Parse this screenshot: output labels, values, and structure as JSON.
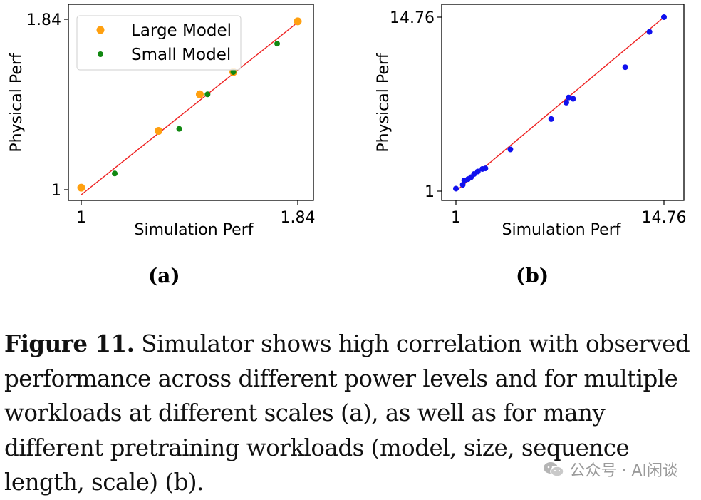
{
  "chart_data": [
    {
      "type": "scatter",
      "panel": "(a)",
      "xlabel": "Simulation Perf",
      "ylabel": "Physical Perf",
      "xlim": [
        1,
        1.84
      ],
      "ylim": [
        1,
        1.84
      ],
      "xticks": [
        "1",
        "1.84"
      ],
      "yticks": [
        "1",
        "1.84"
      ],
      "grid": false,
      "legend": "top-left",
      "fit_line": {
        "color": "#ee2222",
        "x": [
          1.0,
          1.83
        ],
        "y": [
          0.975,
          1.815
        ]
      },
      "series": [
        {
          "name": "Large Model",
          "color": "#ffa010",
          "x": [
            1.0,
            1.3,
            1.46,
            1.59,
            1.84
          ],
          "y": [
            1.01,
            1.29,
            1.47,
            1.58,
            1.83
          ]
        },
        {
          "name": "Small Model",
          "color": "#118811",
          "x": [
            1.13,
            1.38,
            1.49,
            1.59,
            1.76
          ],
          "y": [
            1.08,
            1.3,
            1.47,
            1.58,
            1.72
          ]
        }
      ]
    },
    {
      "type": "scatter",
      "panel": "(b)",
      "xlabel": "Simulation Perf",
      "ylabel": "Physical Perf",
      "xlim": [
        1,
        14.76
      ],
      "ylim": [
        1,
        14.76
      ],
      "xticks": [
        "1",
        "14.76"
      ],
      "yticks": [
        "1",
        "14.76"
      ],
      "grid": false,
      "fit_line": {
        "color": "#ee2222",
        "x": [
          1.0,
          14.76
        ],
        "y": [
          1.0,
          14.76
        ]
      },
      "series": [
        {
          "name": "",
          "color": "#1010ee",
          "x": [
            1.0,
            1.45,
            1.55,
            1.8,
            2.0,
            2.2,
            2.45,
            2.75,
            2.95,
            4.6,
            7.3,
            8.3,
            8.45,
            8.75,
            12.2,
            13.8,
            14.76
          ],
          "y": [
            1.2,
            1.5,
            1.85,
            1.95,
            2.1,
            2.35,
            2.55,
            2.75,
            2.8,
            4.3,
            6.7,
            8.0,
            8.4,
            8.3,
            10.8,
            13.6,
            14.76
          ]
        }
      ]
    }
  ],
  "panels": {
    "a_label": "(a)",
    "b_label": "(b)"
  },
  "caption": {
    "label": "Figure 11.",
    "text": " Simulator shows high correlation with observed performance across different power levels and for multiple workloads at different scales (a), as well as for many different pretraining workloads (model, size, sequence length, scale) (b)."
  },
  "watermark": {
    "text": "公众号 · AI闲谈",
    "icon": "wechat-icon"
  }
}
